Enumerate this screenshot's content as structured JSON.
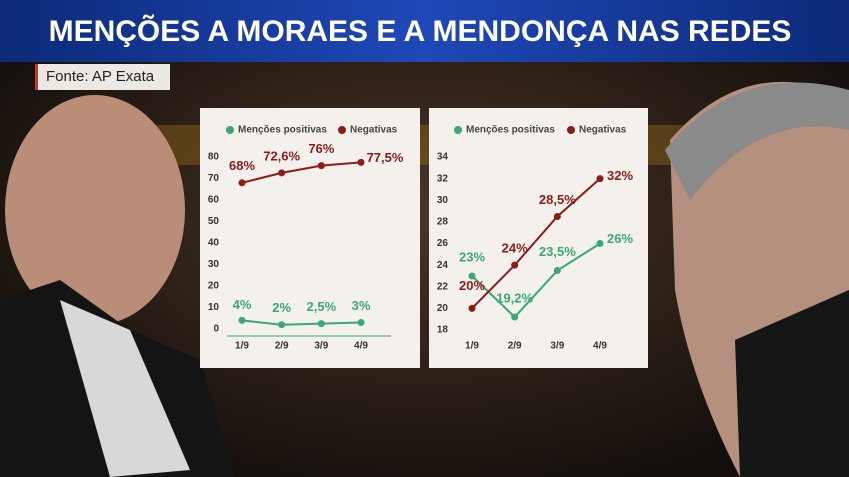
{
  "header": {
    "title": "MENÇÕES A MORAES E A MENDONÇA NAS REDES",
    "source": "Fonte: AP Exata"
  },
  "chart_data": [
    {
      "type": "line",
      "categories": [
        "1/9",
        "2/9",
        "3/9",
        "4/9"
      ],
      "series": [
        {
          "name": "Menções positivas",
          "color": "#3aa873",
          "values": [
            4,
            2,
            2.5,
            3
          ],
          "value_labels": [
            "4%",
            "2%",
            "2,5%",
            "3%"
          ]
        },
        {
          "name": "Negativas",
          "color": "#8e1b1b",
          "values": [
            68,
            72.6,
            76,
            77.5
          ],
          "value_labels": [
            "68%",
            "72,6%",
            "76%",
            "77,5%"
          ]
        }
      ],
      "ylim": [
        0,
        80
      ],
      "yticks": [
        0,
        10,
        20,
        30,
        40,
        50,
        60,
        70,
        80
      ]
    },
    {
      "type": "line",
      "categories": [
        "1/9",
        "2/9",
        "3/9",
        "4/9"
      ],
      "series": [
        {
          "name": "Menções positivas",
          "color": "#3aa873",
          "values": [
            23,
            19.2,
            23.5,
            26
          ],
          "value_labels": [
            "23%",
            "19,2%",
            "23,5%",
            "26%"
          ]
        },
        {
          "name": "Negativas",
          "color": "#8e1b1b",
          "values": [
            20,
            24,
            28.5,
            32
          ],
          "value_labels": [
            "20%",
            "24%",
            "28,5%",
            "32%"
          ]
        }
      ],
      "ylim": [
        18,
        34
      ],
      "yticks": [
        18,
        20,
        22,
        24,
        26,
        28,
        30,
        32,
        34
      ]
    }
  ]
}
